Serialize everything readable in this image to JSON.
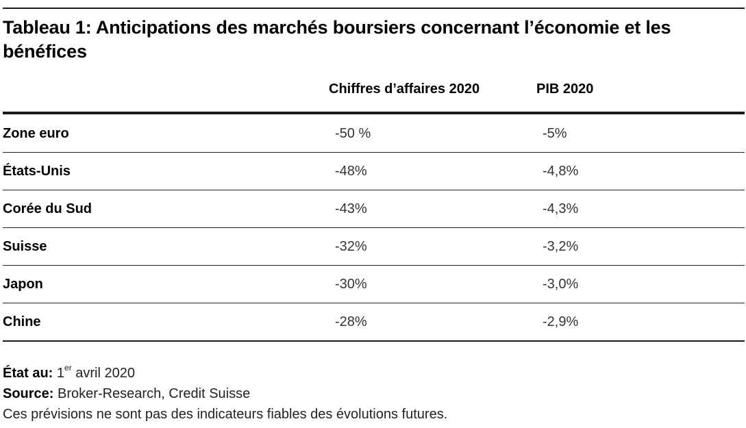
{
  "title": "Tableau 1: Anticipations des marchés boursiers concernant l’économie et les bénéfices",
  "columns": {
    "revenue": "Chiffres d’affaires 2020",
    "gdp": "PIB 2020"
  },
  "rows": [
    {
      "country": "Zone euro",
      "revenue": "-50 %",
      "gdp": "-5%"
    },
    {
      "country": "États-Unis",
      "revenue": "-48%",
      "gdp": "-4,8%"
    },
    {
      "country": "Corée du Sud",
      "revenue": "-43%",
      "gdp": "-4,3%"
    },
    {
      "country": "Suisse",
      "revenue": "-32%",
      "gdp": "-3,2%"
    },
    {
      "country": "Japon",
      "revenue": "-30%",
      "gdp": "-3,0%"
    },
    {
      "country": "Chine",
      "revenue": "-28%",
      "gdp": "-2,9%"
    }
  ],
  "footer": {
    "date_label": "État au:",
    "date_day": "1",
    "date_sup": "er",
    "date_rest": "avril 2020",
    "source_label": "Source:",
    "source_value": "Broker-Research, Credit Suisse",
    "disclaimer": "Ces prévisions ne sont pas des indicateurs fiables des évolutions futures."
  }
}
